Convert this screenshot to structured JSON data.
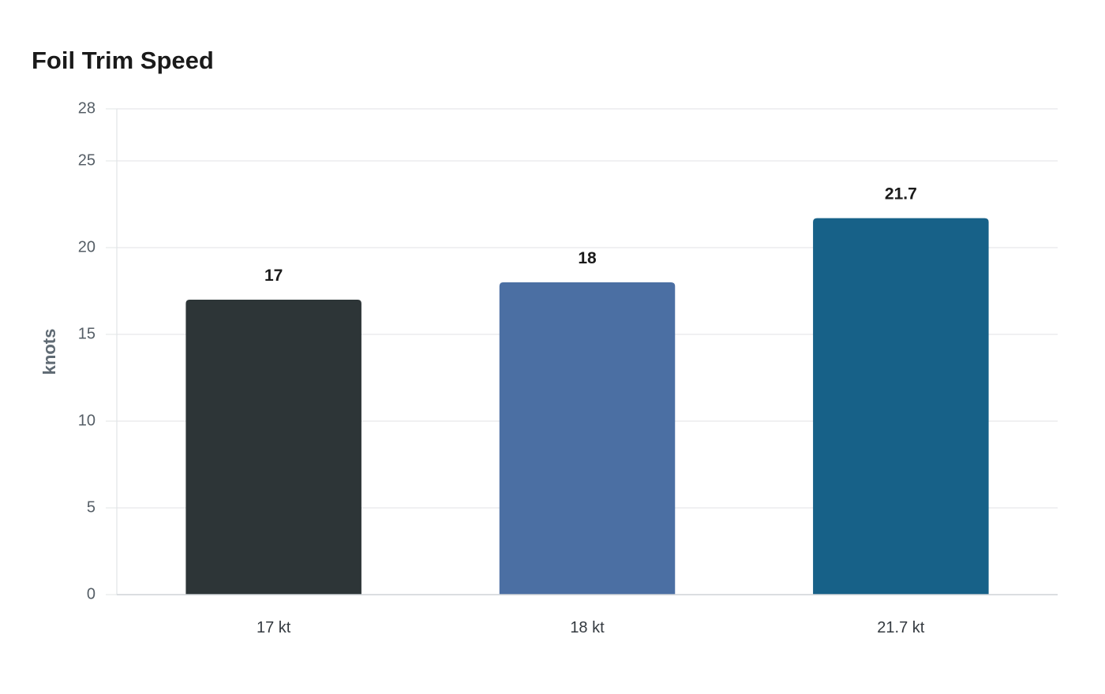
{
  "chart_data": {
    "type": "bar",
    "title": "Foil Trim Speed",
    "xlabel": "",
    "ylabel": "knots",
    "categories": [
      "17 kt",
      "18 kt",
      "21.7 kt"
    ],
    "values": [
      17,
      18,
      21.7
    ],
    "value_labels": [
      "17",
      "18",
      "21.7"
    ],
    "colors": [
      "#2d3537",
      "#4b6fa3",
      "#176188"
    ],
    "ylim": [
      0,
      28
    ],
    "yticks": [
      0,
      5,
      10,
      15,
      20,
      25,
      28
    ],
    "grid": true,
    "legend": "none"
  }
}
